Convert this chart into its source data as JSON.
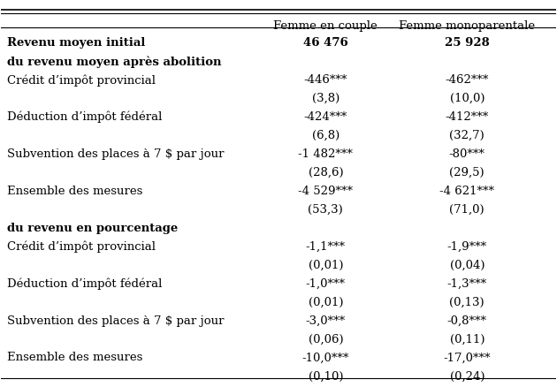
{
  "col_headers": [
    "Femme en couple",
    "Femme monoparentale"
  ],
  "rows": [
    {
      "label": "Revenu moyen initial",
      "bold": true,
      "indent": false,
      "values": [
        "46 476",
        "25 928"
      ],
      "is_section": false
    },
    {
      "label": "du revenu moyen après abolition",
      "bold": true,
      "indent": false,
      "values": [
        "",
        ""
      ],
      "is_section": true
    },
    {
      "label": "Crédit d’impôt provincial",
      "bold": false,
      "indent": false,
      "values": [
        "-446***",
        "-462***"
      ],
      "is_section": false
    },
    {
      "label": "",
      "bold": false,
      "indent": false,
      "values": [
        "(3,8)",
        "(10,0)"
      ],
      "is_section": false
    },
    {
      "label": "Déduction d’impôt fédéral",
      "bold": false,
      "indent": false,
      "values": [
        "-424***",
        "-412***"
      ],
      "is_section": false
    },
    {
      "label": "",
      "bold": false,
      "indent": false,
      "values": [
        "(6,8)",
        "(32,7)"
      ],
      "is_section": false
    },
    {
      "label": "Subvention des places à 7 $ par jour",
      "bold": false,
      "indent": false,
      "values": [
        "-1 482***",
        "-80***"
      ],
      "is_section": false
    },
    {
      "label": "",
      "bold": false,
      "indent": false,
      "values": [
        "(28,6)",
        "(29,5)"
      ],
      "is_section": false
    },
    {
      "label": "Ensemble des mesures",
      "bold": false,
      "indent": false,
      "values": [
        "-4 529***",
        "-4 621***"
      ],
      "is_section": false
    },
    {
      "label": "",
      "bold": false,
      "indent": false,
      "values": [
        "(53,3)",
        "(71,0)"
      ],
      "is_section": false
    },
    {
      "label": "du revenu en pourcentage",
      "bold": true,
      "indent": false,
      "values": [
        "",
        ""
      ],
      "is_section": true
    },
    {
      "label": "Crédit d’impôt provincial",
      "bold": false,
      "indent": false,
      "values": [
        "-1,1***",
        "-1,9***"
      ],
      "is_section": false
    },
    {
      "label": "",
      "bold": false,
      "indent": false,
      "values": [
        "(0,01)",
        "(0,04)"
      ],
      "is_section": false
    },
    {
      "label": "Déduction d’impôt fédéral",
      "bold": false,
      "indent": false,
      "values": [
        "-1,0***",
        "-1,3***"
      ],
      "is_section": false
    },
    {
      "label": "",
      "bold": false,
      "indent": false,
      "values": [
        "(0,01)",
        "(0,13)"
      ],
      "is_section": false
    },
    {
      "label": "Subvention des places à 7 $ par jour",
      "bold": false,
      "indent": false,
      "values": [
        "-3,0***",
        "-0,8***"
      ],
      "is_section": false
    },
    {
      "label": "",
      "bold": false,
      "indent": false,
      "values": [
        "(0,06)",
        "(0,11)"
      ],
      "is_section": false
    },
    {
      "label": "Ensemble des mesures",
      "bold": false,
      "indent": false,
      "values": [
        "-10,0***",
        "-17,0***"
      ],
      "is_section": false
    },
    {
      "label": "",
      "bold": false,
      "indent": false,
      "values": [
        "(0,10)",
        "(0,24)"
      ],
      "is_section": false
    }
  ],
  "figsize": [
    6.3,
    4.39
  ],
  "dpi": 100,
  "font_size": 9.5,
  "header_font_size": 9.5,
  "bg_color": "#ffffff",
  "text_color": "#000000",
  "line_color": "#000000"
}
